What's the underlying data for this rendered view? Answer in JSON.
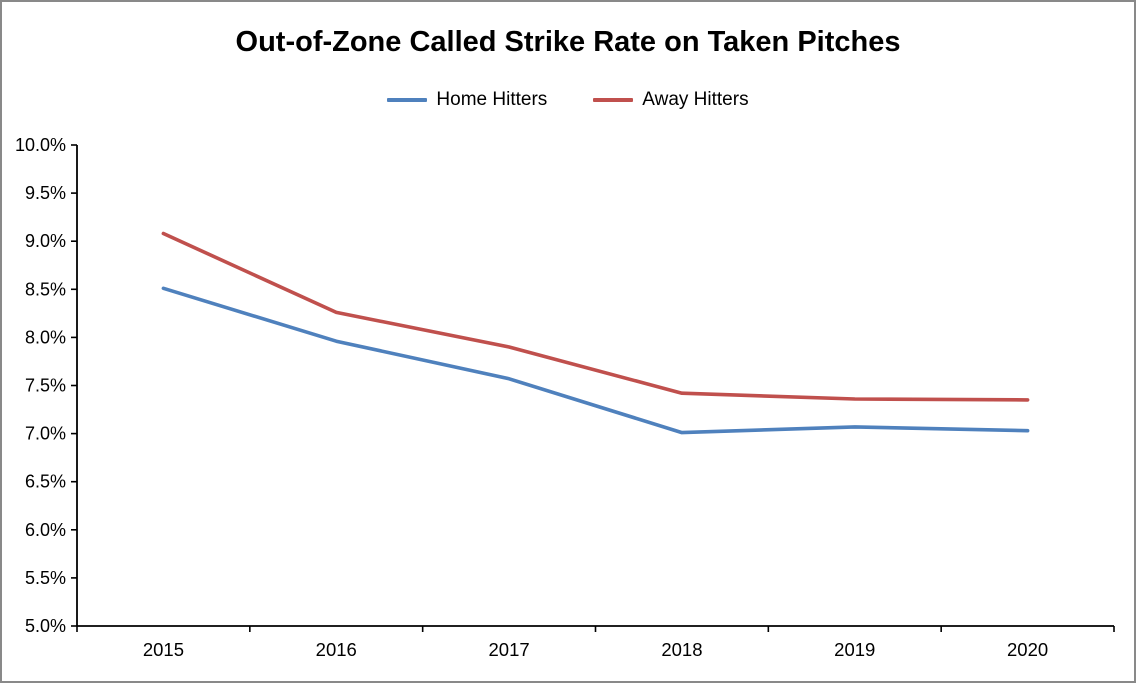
{
  "frame": {
    "background": "#FFFFFF",
    "border_color": "#898989"
  },
  "chart_data": {
    "type": "line",
    "title": "Out-of-Zone Called Strike Rate on Taken Pitches",
    "categories": [
      "2015",
      "2016",
      "2017",
      "2018",
      "2019",
      "2020"
    ],
    "series": [
      {
        "name": "Home Hitters",
        "color": "#4F81BD",
        "values": [
          8.51,
          7.96,
          7.57,
          7.01,
          7.07,
          7.03
        ]
      },
      {
        "name": "Away Hitters",
        "color": "#C0504D",
        "values": [
          9.08,
          8.26,
          7.9,
          7.42,
          7.36,
          7.35
        ]
      }
    ],
    "ylim": [
      5.0,
      10.0
    ],
    "ytick_step": 0.5,
    "ytick_labels": [
      "5.0%",
      "5.5%",
      "6.0%",
      "6.5%",
      "7.0%",
      "7.5%",
      "8.0%",
      "8.5%",
      "9.0%",
      "9.5%",
      "10.0%"
    ],
    "xlabel": "",
    "ylabel": "",
    "grid": false,
    "legend_position": "top-center",
    "axis_color": "#000000",
    "text_color": "#000000"
  }
}
